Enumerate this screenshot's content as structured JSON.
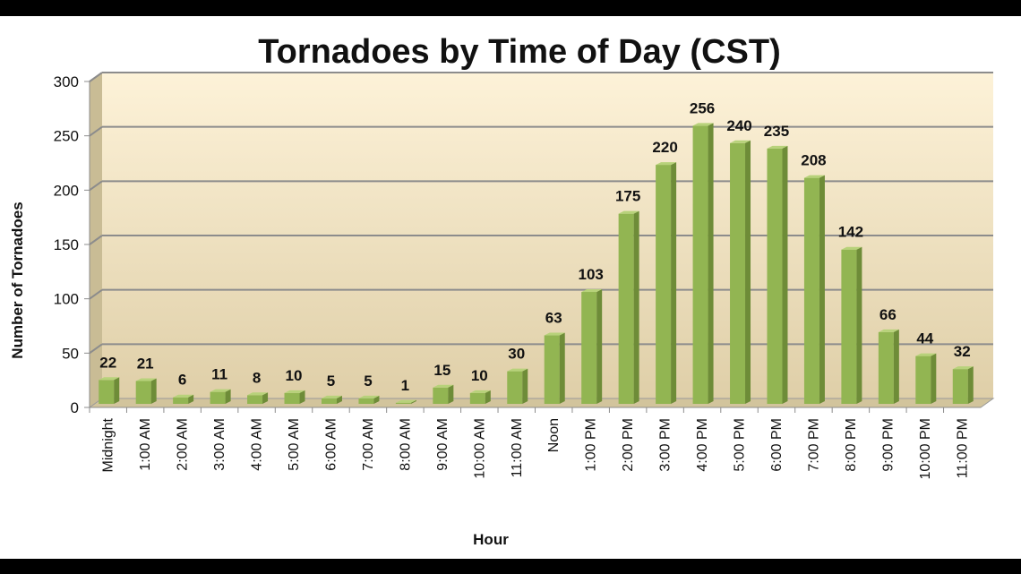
{
  "chart_data": {
    "type": "bar",
    "title": "Tornadoes by Time of Day (CST)",
    "xlabel": "Hour",
    "ylabel": "Number of Tornadoes",
    "ylim": [
      0,
      300
    ],
    "yticks": [
      0,
      50,
      100,
      150,
      200,
      250,
      300
    ],
    "grid": true,
    "legend": "none",
    "categories": [
      "Midnight",
      "1:00 AM",
      "2:00 AM",
      "3:00 AM",
      "4:00 AM",
      "5:00 AM",
      "6:00 AM",
      "7:00 AM",
      "8:00 AM",
      "9:00 AM",
      "10:00 AM",
      "11:00 AM",
      "Noon",
      "1:00 PM",
      "2:00 PM",
      "3:00 PM",
      "4:00 PM",
      "5:00 PM",
      "6:00 PM",
      "7:00 PM",
      "8:00 PM",
      "9:00 PM",
      "10:00 PM",
      "11:00 PM"
    ],
    "values": [
      22,
      21,
      6,
      11,
      8,
      10,
      5,
      5,
      1,
      15,
      10,
      30,
      63,
      103,
      175,
      220,
      256,
      240,
      235,
      208,
      142,
      66,
      44,
      32
    ],
    "colors": {
      "bar": "#92b552",
      "bar_side": "#6e8c38",
      "bar_top": "#b7d27a",
      "plot_top": "#fdf2d8",
      "plot_bottom": "#dfcfa8",
      "grid": "#8c8c8c"
    }
  }
}
